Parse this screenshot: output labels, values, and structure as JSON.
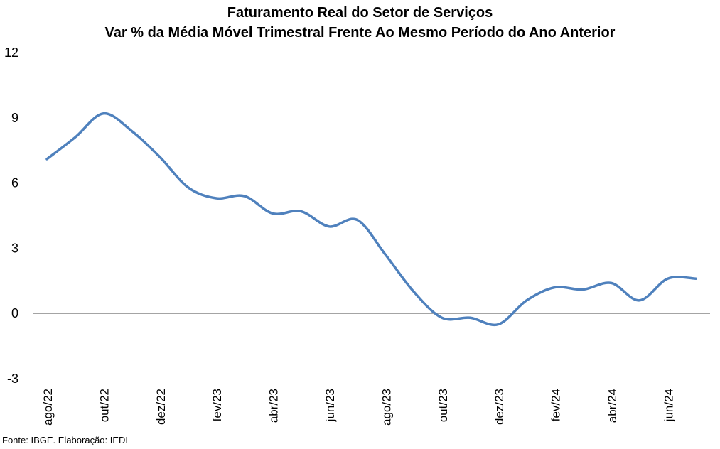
{
  "chart_data": {
    "type": "line",
    "title": "Faturamento Real do Setor de Serviços",
    "subtitle": "Var % da Média Móvel Trimestral Frente Ao Mesmo Período do Ano Anterior",
    "xlabel": "",
    "ylabel": "",
    "ylim": [
      -3,
      12
    ],
    "yticks": [
      "12",
      "9",
      "6",
      "3",
      "0",
      "-3"
    ],
    "x_tick_labels": [
      "ago/22",
      "out/22",
      "dez/22",
      "fev/23",
      "abr/23",
      "jun/23",
      "ago/23",
      "out/23",
      "dez/23",
      "fev/24",
      "abr/24",
      "jun/24"
    ],
    "x": [
      "ago/22",
      "set/22",
      "out/22",
      "nov/22",
      "dez/22",
      "jan/23",
      "fev/23",
      "mar/23",
      "abr/23",
      "mai/23",
      "jun/23",
      "jul/23",
      "ago/23",
      "set/23",
      "out/23",
      "nov/23",
      "dez/23",
      "jan/24",
      "fev/24",
      "mar/24",
      "abr/24",
      "mai/24",
      "jun/24",
      "jul/24"
    ],
    "series": [
      {
        "values": [
          7.1,
          8.1,
          9.2,
          8.4,
          7.2,
          5.8,
          5.3,
          5.4,
          4.6,
          4.7,
          4.0,
          4.3,
          2.7,
          1.0,
          -0.2,
          -0.2,
          -0.5,
          0.6,
          1.2,
          1.1,
          1.4,
          0.6,
          1.6,
          1.6
        ],
        "color": "#4f81bd"
      }
    ],
    "grid": false,
    "legend": "none"
  },
  "source": "Fonte: IBGE. Elaboração: IEDI"
}
